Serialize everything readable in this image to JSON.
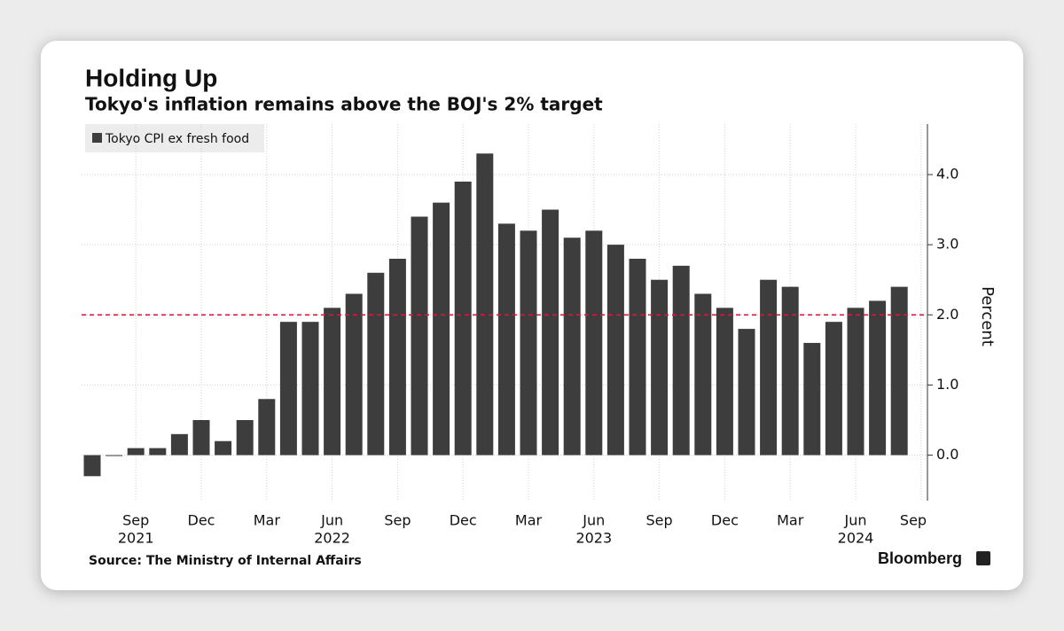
{
  "chart_data": {
    "type": "bar",
    "title": "Holding Up",
    "subtitle": "Tokyo's inflation remains above the BOJ's 2% target",
    "y_label": "Percent",
    "source": "Source: The Ministry of Internal Affairs",
    "brand": "Bloomberg",
    "categories": [
      null,
      null,
      "Sep",
      null,
      null,
      "Dec",
      null,
      null,
      "Mar",
      null,
      null,
      "Jun",
      null,
      null,
      "Sep",
      null,
      null,
      "Dec",
      null,
      null,
      "Mar",
      null,
      null,
      "Jun",
      null,
      null,
      "Sep",
      null,
      null,
      "Dec",
      null,
      null,
      "Mar",
      null,
      null,
      "Jun",
      null,
      null,
      "Sep"
    ],
    "years": [
      null,
      null,
      "2021",
      null,
      null,
      null,
      null,
      null,
      null,
      null,
      null,
      "2022",
      null,
      null,
      null,
      null,
      null,
      null,
      null,
      null,
      null,
      null,
      null,
      "2023",
      null,
      null,
      null,
      null,
      null,
      null,
      null,
      null,
      null,
      null,
      null,
      "2024",
      null,
      null,
      null
    ],
    "series": [
      {
        "name": "Tokyo CPI ex fresh food",
        "color": "#3d3d3d",
        "values": [
          -0.3,
          0.0,
          0.1,
          0.1,
          0.3,
          0.5,
          0.2,
          0.5,
          0.8,
          1.9,
          1.9,
          2.1,
          2.3,
          2.6,
          2.8,
          3.4,
          3.6,
          3.9,
          4.3,
          3.3,
          3.2,
          3.5,
          3.1,
          3.2,
          3.0,
          2.8,
          2.5,
          2.7,
          2.3,
          2.1,
          1.8,
          2.5,
          2.4,
          1.6,
          1.9,
          2.1,
          2.2,
          2.4,
          null
        ]
      }
    ],
    "ylim": [
      -0.65,
      4.72
    ],
    "yticks": [
      {
        "value": 0,
        "label": "0.0"
      },
      {
        "value": 1,
        "label": "1.0"
      },
      {
        "value": 2,
        "label": "2.0"
      },
      {
        "value": 3,
        "label": "3.0"
      },
      {
        "value": 4,
        "label": "4.0"
      }
    ],
    "reference_line": {
      "value": 2,
      "color": "#d9163c"
    },
    "grid": true
  }
}
